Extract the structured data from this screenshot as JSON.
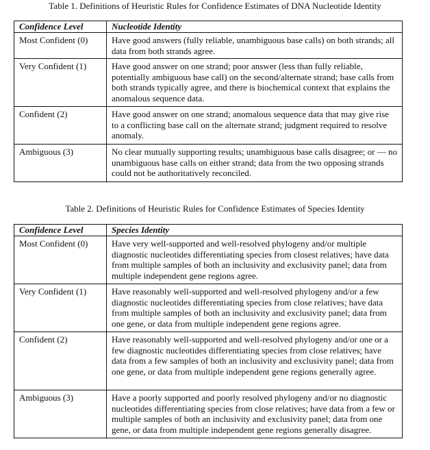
{
  "table1": {
    "title": "Table 1. Definitions of Heuristic Rules for Confidence Estimates of DNA Nucleotide Identity",
    "headers": [
      "Confidence Level",
      "Nucleotide Identity"
    ],
    "rows": [
      {
        "level": "Most Confident (0)",
        "text": "Have good answers (fully reliable, unambiguous base calls) on both strands; all data from both strands agree."
      },
      {
        "level": "Very Confident (1)",
        "text": "Have good answer on one strand; poor answer (less than fully reliable, potentially ambiguous base call) on the second/alternate strand; base calls from both strands typically agree, and there is biochemical context that explains the anomalous sequence data."
      },
      {
        "level": "Confident (2)",
        "text": "Have good answer on one strand; anomalous sequence data that may give rise to a conflicting base call on the alternate strand; judgment required to resolve anomaly."
      },
      {
        "level": "Ambiguous (3)",
        "text": "No clear mutually supporting results; unambiguous base calls disagree; or — no unambiguous base calls on either strand; data from the two opposing strands could not be authoritatively reconciled."
      }
    ]
  },
  "table2": {
    "title": "Table 2. Definitions of Heuristic Rules for Confidence Estimates of Species Identity",
    "headers": [
      "Confidence Level",
      "Species Identity"
    ],
    "rows": [
      {
        "level": "Most Confident (0)",
        "text": "Have very well-supported and well-resolved phylogeny and/or multiple diagnostic nucleotides differentiating species from closest relatives; have data from multiple samples of both an inclusivity and exclusivity panel; data from multiple independent gene regions agree."
      },
      {
        "level": "Very Confident (1)",
        "text": "Have reasonably well-supported and well-resolved phylogeny and/or a few diagnostic nucleotides differentiating species from close relatives; have data from multiple samples of both an inclusivity and exclusivity panel; data from one gene, or data from multiple independent gene regions agree."
      },
      {
        "level": "Confident (2)",
        "text": "Have reasonably well-supported and well-resolved phylogeny and/or one or a few diagnostic nucleotides differentiating species from close relatives; have data from a few samples of both an inclusivity and exclusivity panel; data from one gene, or data from multiple independent gene regions generally agree."
      },
      {
        "level": "Ambiguous (3)",
        "text": "Have a poorly supported and poorly resolved phylogeny and/or no diagnostic nucleotides differentiating species from close relatives; have data from a few or multiple samples of both an inclusivity and exclusivity panel; data from one gene, or data from multiple independent gene regions generally disagree."
      }
    ]
  }
}
